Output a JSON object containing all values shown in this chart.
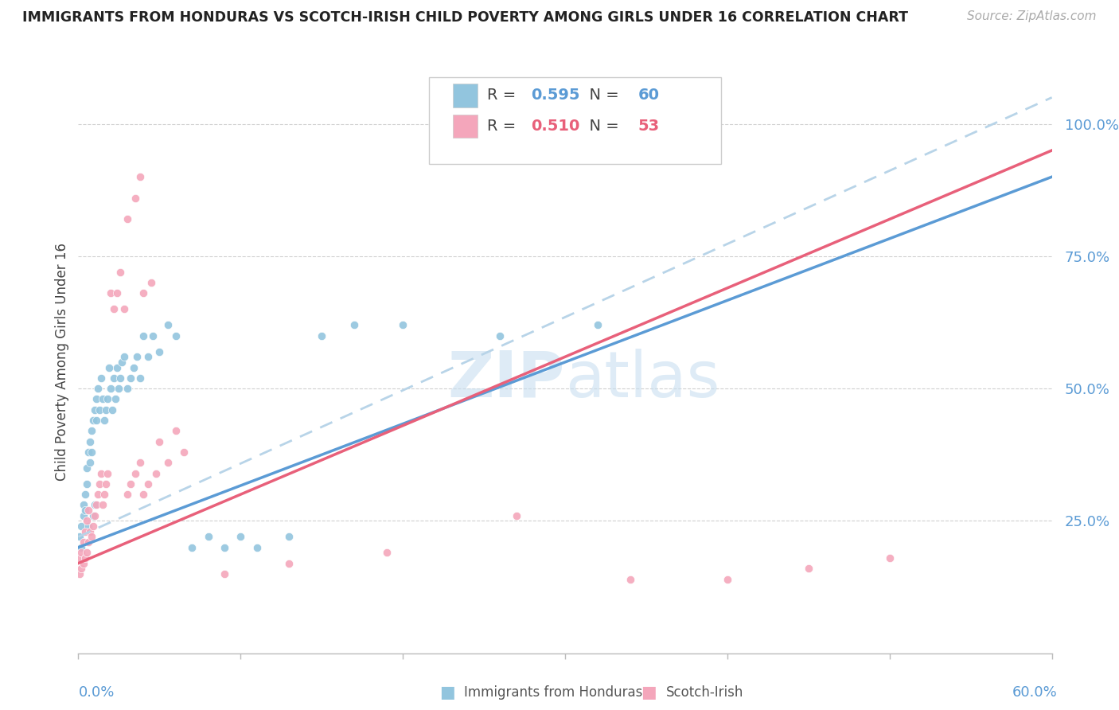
{
  "title": "IMMIGRANTS FROM HONDURAS VS SCOTCH-IRISH CHILD POVERTY AMONG GIRLS UNDER 16 CORRELATION CHART",
  "source": "Source: ZipAtlas.com",
  "ylabel": "Child Poverty Among Girls Under 16",
  "right_yticks": [
    "100.0%",
    "75.0%",
    "50.0%",
    "25.0%"
  ],
  "right_ytick_vals": [
    1.0,
    0.75,
    0.5,
    0.25
  ],
  "blue_R": "0.595",
  "blue_N": "60",
  "pink_R": "0.510",
  "pink_N": "53",
  "blue_color": "#92c5de",
  "pink_color": "#f4a6bb",
  "blue_line_color": "#5b9bd5",
  "pink_line_color": "#e8607a",
  "dashed_line_color": "#b8d4e8",
  "watermark_color": "#c8dff0",
  "xlim": [
    0.0,
    0.6
  ],
  "ylim": [
    0.0,
    1.1
  ],
  "blue_trend_x0": 0.0,
  "blue_trend_y0": 0.2,
  "blue_trend_x1": 0.6,
  "blue_trend_y1": 0.9,
  "pink_trend_x0": 0.0,
  "pink_trend_y0": 0.17,
  "pink_trend_x1": 0.6,
  "pink_trend_y1": 0.95,
  "dashed_trend_x0": 0.0,
  "dashed_trend_y0": 0.22,
  "dashed_trend_x1": 0.6,
  "dashed_trend_y1": 1.05,
  "blue_pts_x": [
    0.001,
    0.002,
    0.002,
    0.003,
    0.003,
    0.004,
    0.004,
    0.005,
    0.005,
    0.006,
    0.006,
    0.007,
    0.007,
    0.008,
    0.008,
    0.009,
    0.009,
    0.01,
    0.01,
    0.011,
    0.011,
    0.012,
    0.013,
    0.014,
    0.015,
    0.016,
    0.017,
    0.018,
    0.019,
    0.02,
    0.021,
    0.022,
    0.023,
    0.024,
    0.025,
    0.026,
    0.027,
    0.028,
    0.03,
    0.032,
    0.034,
    0.036,
    0.038,
    0.04,
    0.043,
    0.046,
    0.05,
    0.055,
    0.06,
    0.07,
    0.08,
    0.09,
    0.1,
    0.11,
    0.13,
    0.15,
    0.17,
    0.2,
    0.26,
    0.32
  ],
  "blue_pts_y": [
    0.22,
    0.2,
    0.24,
    0.26,
    0.28,
    0.3,
    0.27,
    0.32,
    0.35,
    0.24,
    0.38,
    0.36,
    0.4,
    0.38,
    0.42,
    0.26,
    0.44,
    0.46,
    0.28,
    0.48,
    0.44,
    0.5,
    0.46,
    0.52,
    0.48,
    0.44,
    0.46,
    0.48,
    0.54,
    0.5,
    0.46,
    0.52,
    0.48,
    0.54,
    0.5,
    0.52,
    0.55,
    0.56,
    0.5,
    0.52,
    0.54,
    0.56,
    0.52,
    0.6,
    0.56,
    0.6,
    0.57,
    0.62,
    0.6,
    0.2,
    0.22,
    0.2,
    0.22,
    0.2,
    0.22,
    0.6,
    0.62,
    0.62,
    0.6,
    0.62
  ],
  "pink_pts_x": [
    0.001,
    0.001,
    0.002,
    0.002,
    0.003,
    0.003,
    0.004,
    0.004,
    0.005,
    0.005,
    0.006,
    0.006,
    0.007,
    0.008,
    0.009,
    0.01,
    0.011,
    0.012,
    0.013,
    0.014,
    0.015,
    0.016,
    0.017,
    0.018,
    0.02,
    0.022,
    0.024,
    0.026,
    0.028,
    0.03,
    0.032,
    0.035,
    0.038,
    0.04,
    0.043,
    0.048,
    0.055,
    0.065,
    0.03,
    0.035,
    0.038,
    0.04,
    0.045,
    0.05,
    0.06,
    0.09,
    0.13,
    0.19,
    0.27,
    0.34,
    0.4,
    0.45,
    0.5
  ],
  "pink_pts_y": [
    0.15,
    0.18,
    0.16,
    0.19,
    0.17,
    0.21,
    0.18,
    0.23,
    0.19,
    0.25,
    0.21,
    0.27,
    0.23,
    0.22,
    0.24,
    0.26,
    0.28,
    0.3,
    0.32,
    0.34,
    0.28,
    0.3,
    0.32,
    0.34,
    0.68,
    0.65,
    0.68,
    0.72,
    0.65,
    0.3,
    0.32,
    0.34,
    0.36,
    0.3,
    0.32,
    0.34,
    0.36,
    0.38,
    0.82,
    0.86,
    0.9,
    0.68,
    0.7,
    0.4,
    0.42,
    0.15,
    0.17,
    0.19,
    0.26,
    0.14,
    0.14,
    0.16,
    0.18
  ]
}
